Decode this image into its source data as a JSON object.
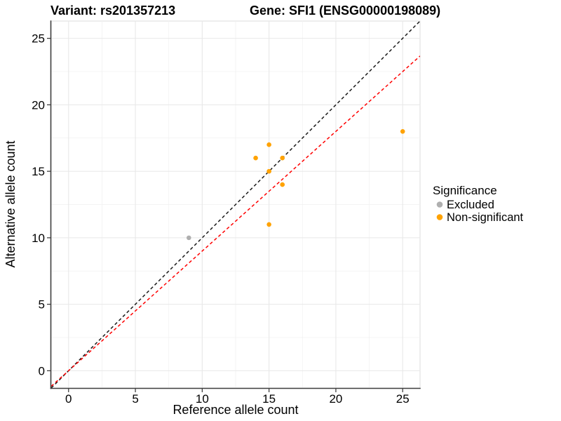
{
  "title": {
    "left": "Variant: rs201357213",
    "right": "Gene: SFI1 (ENSG00000198089)"
  },
  "axes": {
    "x_label": "Reference allele count",
    "y_label": "Alternative allele count"
  },
  "legend": {
    "title": "Significance",
    "entries": [
      {
        "label": "Excluded",
        "color": "#afafaf"
      },
      {
        "label": "Non-significant",
        "color": "#ffa200"
      }
    ]
  },
  "colors": {
    "identity_line": "#1a1a1a",
    "fit_line": "#ff0000",
    "excluded_point": "#afafaf",
    "nonsignificant_point": "#ffa200",
    "grid_major": "#e8e8e8",
    "grid_minor": "#f1f1f1",
    "axis_line": "#404040"
  },
  "chart_data": {
    "type": "scatter",
    "title": "Variant: rs201357213    Gene: SFI1 (ENSG00000198089)",
    "xlabel": "Reference allele count",
    "ylabel": "Alternative allele count",
    "xlim": [
      -1.3,
      26.3
    ],
    "ylim": [
      -1.3,
      26.3
    ],
    "x_ticks": [
      0,
      5,
      10,
      15,
      20,
      25
    ],
    "y_ticks": [
      0,
      5,
      10,
      15,
      20,
      25
    ],
    "x_minor_ticks": [
      2.5,
      7.5,
      12.5,
      17.5,
      22.5
    ],
    "y_minor_ticks": [
      2.5,
      7.5,
      12.5,
      17.5,
      22.5
    ],
    "grid": "major+minor",
    "legend_position": "right",
    "point_radius": 3.3,
    "series": [
      {
        "name": "Excluded",
        "color": "#afafaf",
        "points": [
          [
            9,
            10
          ]
        ]
      },
      {
        "name": "Non-significant",
        "color": "#ffa200",
        "points": [
          [
            14,
            16
          ],
          [
            15,
            17
          ],
          [
            15,
            15
          ],
          [
            16,
            16
          ],
          [
            16,
            14
          ],
          [
            15,
            11
          ],
          [
            25,
            18
          ]
        ]
      }
    ],
    "lines": [
      {
        "name": "identity-line",
        "style": "dashed",
        "color": "#1a1a1a",
        "slope": 1.0,
        "intercept": 0
      },
      {
        "name": "fit-line",
        "style": "dashed",
        "color": "#ff0000",
        "slope": 0.9,
        "intercept": 0
      }
    ]
  }
}
